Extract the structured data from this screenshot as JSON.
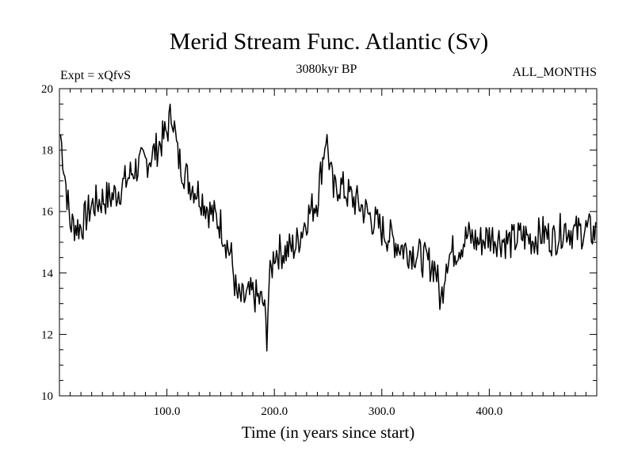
{
  "chart_data": {
    "type": "line",
    "title": "Merid Stream Func. Atlantic (Sv)",
    "subtitle_left": "Expt = xQfvS",
    "subtitle_center": "3080kyr BP",
    "subtitle_right": "ALL_MONTHS",
    "xlabel": "Time (in years since start)",
    "ylabel": "",
    "xlim": [
      0,
      500
    ],
    "ylim": [
      10,
      20
    ],
    "x_ticks": [
      100,
      200,
      300,
      400
    ],
    "x_tick_labels": [
      "100.0",
      "200.0",
      "300.0",
      "400.0"
    ],
    "y_ticks": [
      10,
      12,
      14,
      16,
      18,
      20
    ],
    "y_tick_labels": [
      "10",
      "12",
      "14",
      "16",
      "18",
      "20"
    ],
    "series": [
      {
        "name": "Merid Stream Func. Atlantic",
        "x": [
          1,
          10,
          20,
          30,
          40,
          50,
          60,
          70,
          80,
          90,
          100,
          105,
          110,
          120,
          130,
          140,
          150,
          160,
          165,
          170,
          180,
          190,
          193,
          195,
          200,
          210,
          220,
          230,
          240,
          248,
          255,
          260,
          270,
          280,
          290,
          300,
          310,
          320,
          330,
          340,
          350,
          355,
          360,
          370,
          380,
          390,
          400,
          410,
          420,
          430,
          440,
          450,
          460,
          470,
          480,
          490,
          499
        ],
        "values": [
          18.5,
          15.6,
          15.5,
          16.2,
          16.4,
          16.5,
          16.9,
          17.4,
          17.6,
          18.0,
          18.6,
          19.3,
          17.8,
          17.0,
          16.6,
          16.0,
          15.6,
          14.5,
          13.2,
          13.1,
          13.3,
          13.0,
          12.0,
          13.6,
          14.7,
          14.7,
          14.9,
          15.8,
          16.4,
          18.5,
          16.6,
          16.9,
          16.5,
          16.2,
          15.8,
          15.4,
          15.1,
          14.8,
          14.7,
          14.4,
          14.2,
          13.0,
          14.5,
          14.8,
          15.2,
          15.0,
          15.2,
          15.1,
          15.0,
          15.2,
          15.1,
          15.3,
          15.1,
          15.5,
          15.3,
          15.4,
          15.3
        ],
        "noise_amplitude": 0.6
      }
    ]
  }
}
